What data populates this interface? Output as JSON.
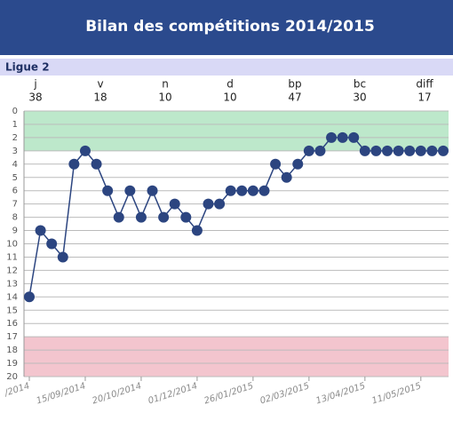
{
  "header": {
    "title": "Bilan des compétitions 2014/2015"
  },
  "section": "Ligue 2",
  "stats": [
    {
      "label": "j",
      "value": 38
    },
    {
      "label": "v",
      "value": 18
    },
    {
      "label": "n",
      "value": 10
    },
    {
      "label": "d",
      "value": 10
    },
    {
      "label": "bp",
      "value": 47
    },
    {
      "label": "bc",
      "value": 30
    },
    {
      "label": "diff",
      "value": 17
    }
  ],
  "chart_data": {
    "type": "line",
    "categories": [
      "/2014",
      null,
      null,
      null,
      null,
      "15/09/2014",
      null,
      null,
      null,
      null,
      "20/10/2014",
      null,
      null,
      null,
      null,
      "01/12/2014",
      null,
      null,
      null,
      null,
      "26/01/2015",
      null,
      null,
      null,
      null,
      "02/03/2015",
      null,
      null,
      null,
      null,
      "13/04/2015",
      null,
      null,
      null,
      null,
      "11/05/2015",
      null,
      null
    ],
    "series": [
      {
        "color": "#2c4580",
        "values": [
          14,
          9,
          10,
          11,
          4,
          3,
          4,
          6,
          8,
          6,
          8,
          6,
          8,
          7,
          8,
          9,
          7,
          7,
          6,
          6,
          6,
          6,
          4,
          5,
          4,
          3,
          3,
          2,
          2,
          2,
          3,
          3,
          3,
          3,
          3,
          3,
          3,
          3
        ]
      }
    ],
    "ylim": [
      0,
      20
    ],
    "y_inverted": true,
    "yticks": [
      0,
      1,
      2,
      3,
      4,
      5,
      6,
      7,
      8,
      9,
      10,
      11,
      12,
      13,
      14,
      15,
      16,
      17,
      18,
      19,
      20
    ],
    "grid": true,
    "bands": [
      {
        "from": 0,
        "to": 3,
        "color": "#bde8cb"
      },
      {
        "from": 17,
        "to": 20,
        "color": "#f3c5ce"
      }
    ]
  }
}
